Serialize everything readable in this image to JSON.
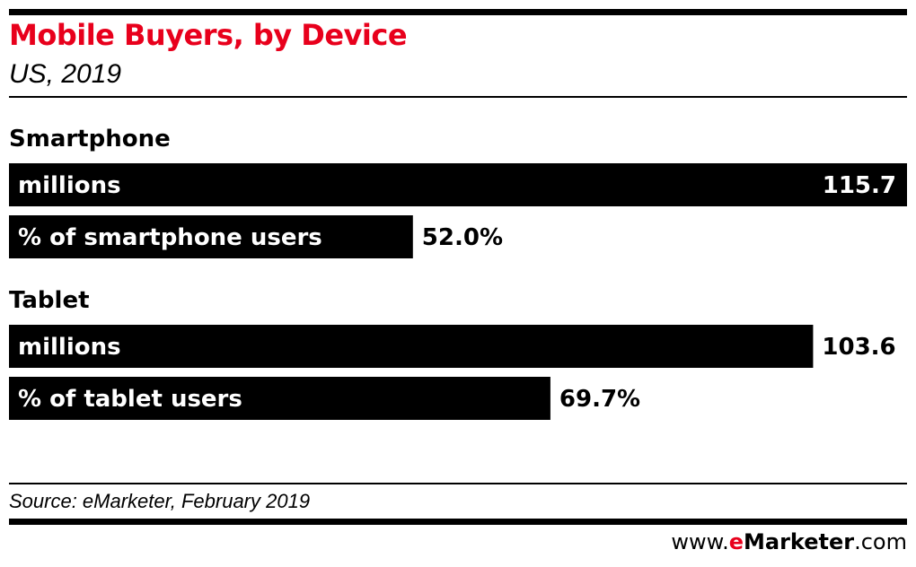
{
  "header": {
    "title": "Mobile Buyers, by Device",
    "subtitle": "US, 2019"
  },
  "colors": {
    "accent": "#e8001c",
    "bar": "#000000",
    "bar_label": "#ffffff"
  },
  "chart_data": {
    "type": "bar",
    "orientation": "horizontal",
    "groups": [
      {
        "name": "Smartphone",
        "bars": [
          {
            "label": "millions",
            "value": 115.7,
            "display": "115.7"
          },
          {
            "label": "% of smartphone users",
            "value": 52.0,
            "display": "52.0%"
          }
        ]
      },
      {
        "name": "Tablet",
        "bars": [
          {
            "label": "millions",
            "value": 103.6,
            "display": "103.6"
          },
          {
            "label": "% of tablet users",
            "value": 69.7,
            "display": "69.7%"
          }
        ]
      }
    ],
    "grid": false,
    "legend": "none"
  },
  "footer": {
    "source": "Source: eMarketer, February 2019",
    "brand_prefix": "www.",
    "brand_e": "e",
    "brand_name": "Marketer",
    "brand_suffix": ".com"
  }
}
